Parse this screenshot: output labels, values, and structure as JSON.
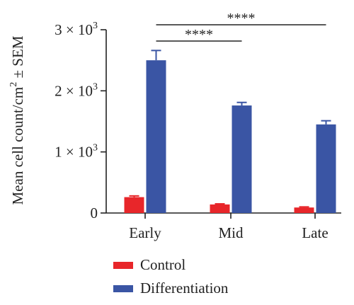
{
  "chart_data": {
    "type": "bar",
    "categories": [
      "Early",
      "Mid",
      "Late"
    ],
    "series": [
      {
        "name": "Control",
        "color": "#e8262a",
        "values": [
          260,
          140,
          90
        ],
        "errors": [
          20,
          10,
          10
        ]
      },
      {
        "name": "Differentiation",
        "color": "#3a55a4",
        "values": [
          2500,
          1760,
          1450
        ],
        "errors": [
          160,
          50,
          60
        ]
      }
    ],
    "ylabel_main": "Mean cell count/cm",
    "ylabel_sup": "2",
    "ylabel_tail": " ± SEM",
    "ylim": [
      0,
      3000
    ],
    "yticks": [
      {
        "value": 0,
        "base": "0",
        "exp": ""
      },
      {
        "value": 1000,
        "base": "1 × 10",
        "exp": "3"
      },
      {
        "value": 2000,
        "base": "2 × 10",
        "exp": "3"
      },
      {
        "value": 3000,
        "base": "3 × 10",
        "exp": "3"
      }
    ],
    "significance": [
      {
        "from": 0,
        "to": 1,
        "label": "****"
      },
      {
        "from": 0,
        "to": 2,
        "label": "****"
      }
    ],
    "legend_position": "bottom-left",
    "grid": false
  }
}
